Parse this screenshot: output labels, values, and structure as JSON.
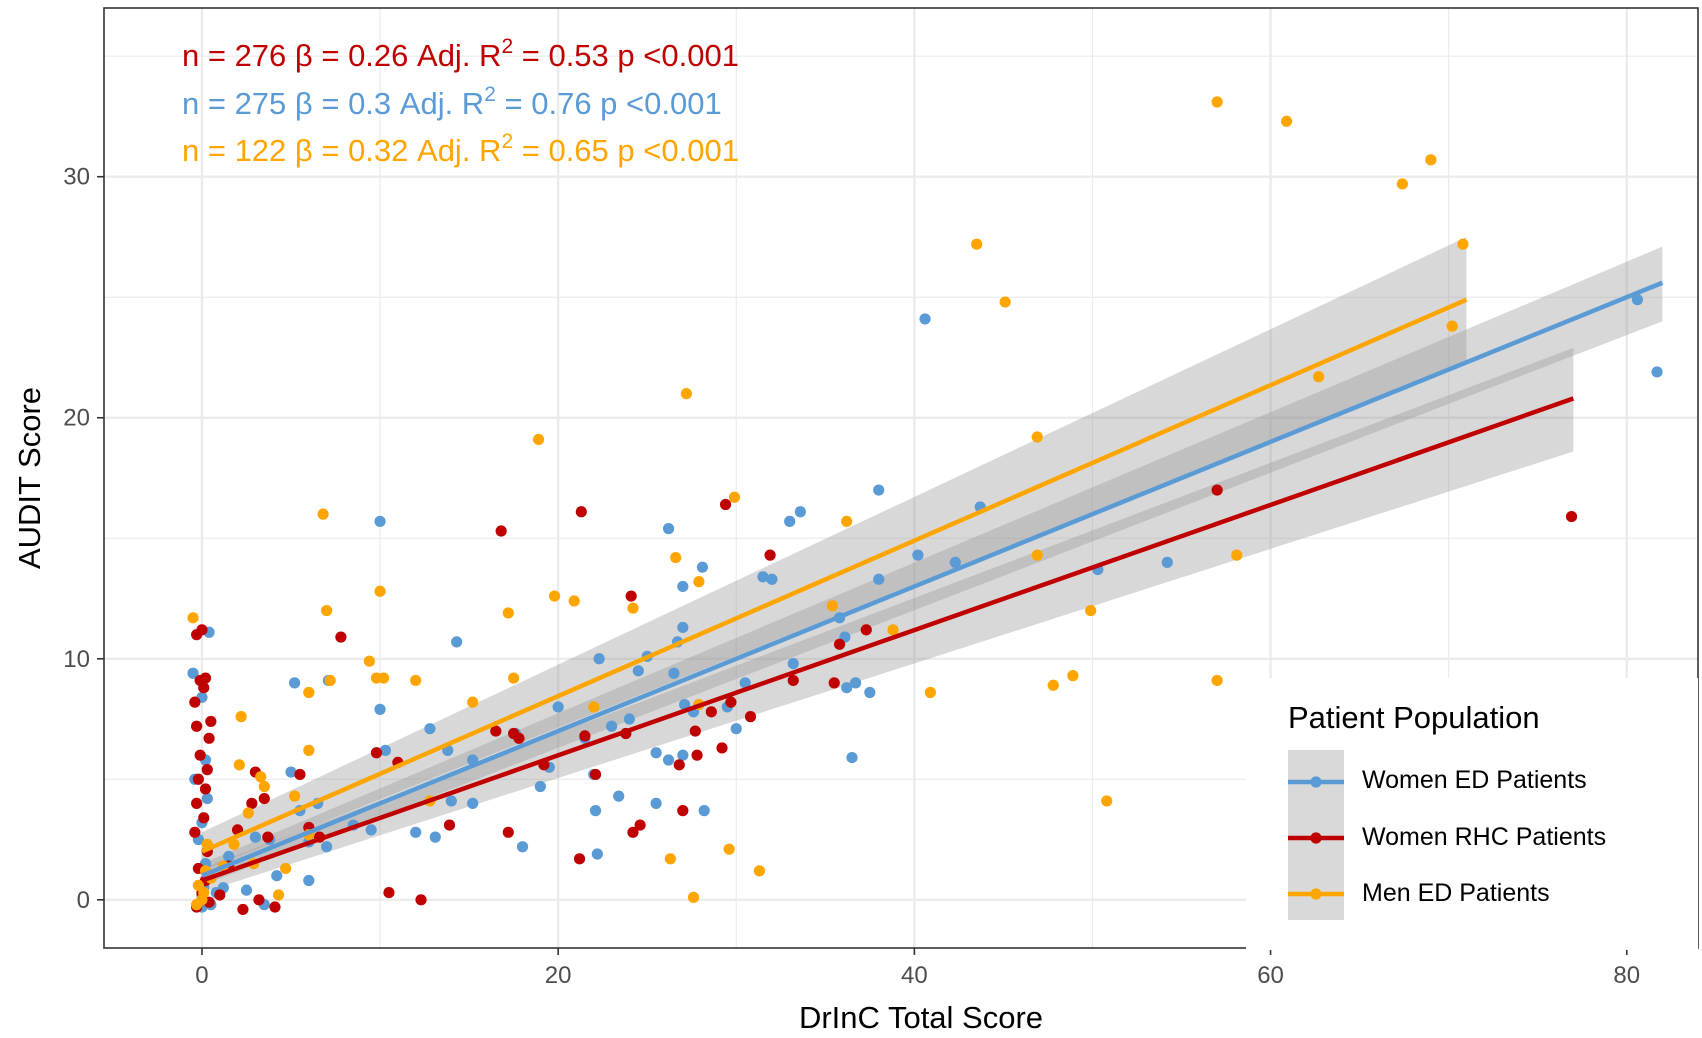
{
  "colors": {
    "women_ed": "#5b9bd5",
    "women_rhc": "#c00000",
    "men_ed": "#ffa500",
    "ribbon": "#999999",
    "grid": "#ebebeb"
  },
  "chart_data": {
    "type": "scatter",
    "xlabel": "DrInC Total Score",
    "ylabel": "AUDIT Score",
    "xlim": [
      -5.5,
      84
    ],
    "ylim": [
      -2,
      37
    ],
    "x_ticks": [
      0,
      20,
      40,
      60,
      80
    ],
    "y_ticks": [
      0,
      10,
      20,
      30
    ],
    "grid": true,
    "annotations": [
      {
        "text": "n = 276 β = 0.26 Adj. R² = 0.53 p <0.001",
        "parts": {
          "pre": "n = 276 β = 0.26 Adj. R",
          "sup": "2",
          "post": " = 0.53 p <0.001"
        },
        "color": "#c00000"
      },
      {
        "text": "n = 275 β = 0.3 Adj. R² = 0.76 p <0.001",
        "parts": {
          "pre": "n = 275 β = 0.3 Adj. R",
          "sup": "2",
          "post": " = 0.76 p <0.001"
        },
        "color": "#5b9bd5"
      },
      {
        "text": "n = 122 β = 0.32 Adj. R² = 0.65 p <0.001",
        "parts": {
          "pre": "n = 122 β = 0.32 Adj. R",
          "sup": "2",
          "post": " = 0.65 p <0.001"
        },
        "color": "#ffa500"
      }
    ],
    "legend": {
      "title": "Patient Population",
      "placement": "bottom-right",
      "entries": [
        "Women ED Patients",
        "Women RHC Patients",
        "Men ED Patients"
      ]
    },
    "series": [
      {
        "name": "Women ED Patients",
        "color": "#5b9bd5",
        "fit": {
          "x": [
            0,
            82
          ],
          "y": [
            1.0,
            25.6
          ],
          "lower": [
            0.6,
            24.0
          ],
          "upper": [
            1.5,
            27.1
          ]
        },
        "points": [
          [
            0,
            0
          ],
          [
            0,
            0.2
          ],
          [
            0,
            -0.3
          ],
          [
            0.1,
            0.5
          ],
          [
            0.2,
            1.5
          ],
          [
            -0.2,
            2.5
          ],
          [
            0,
            3.2
          ],
          [
            0.3,
            4.2
          ],
          [
            -0.4,
            5.0
          ],
          [
            0.2,
            5.8
          ],
          [
            0,
            8.4
          ],
          [
            -0.5,
            9.4
          ],
          [
            0.4,
            11.1
          ],
          [
            0.5,
            -0.2
          ],
          [
            0.8,
            0.3
          ],
          [
            1.2,
            0.5
          ],
          [
            1.5,
            1.8
          ],
          [
            2.5,
            0.4
          ],
          [
            3,
            2.6
          ],
          [
            3.5,
            -0.2
          ],
          [
            3.8,
            2.5
          ],
          [
            4.2,
            1.0
          ],
          [
            5,
            5.3
          ],
          [
            5.2,
            9.0
          ],
          [
            5.5,
            3.7
          ],
          [
            6,
            2.4
          ],
          [
            6,
            0.8
          ],
          [
            6.5,
            4.0
          ],
          [
            7,
            2.2
          ],
          [
            7.1,
            9.1
          ],
          [
            8.5,
            3.1
          ],
          [
            9.5,
            2.9
          ],
          [
            10,
            7.9
          ],
          [
            10,
            15.7
          ],
          [
            10.3,
            6.2
          ],
          [
            12,
            2.8
          ],
          [
            12.8,
            7.1
          ],
          [
            13.1,
            2.6
          ],
          [
            13.8,
            6.2
          ],
          [
            14,
            4.1
          ],
          [
            14.3,
            10.7
          ],
          [
            15.2,
            5.8
          ],
          [
            15.2,
            4.0
          ],
          [
            17.6,
            6.9
          ],
          [
            18,
            2.2
          ],
          [
            19,
            4.7
          ],
          [
            19.5,
            5.5
          ],
          [
            20,
            8.0
          ],
          [
            21.5,
            6.7
          ],
          [
            22,
            5.2
          ],
          [
            22.1,
            3.7
          ],
          [
            22.2,
            1.9
          ],
          [
            22.3,
            10.0
          ],
          [
            23,
            7.2
          ],
          [
            23.4,
            4.3
          ],
          [
            24,
            7.5
          ],
          [
            24.5,
            9.5
          ],
          [
            25,
            10.1
          ],
          [
            25.5,
            6.1
          ],
          [
            25.5,
            4.0
          ],
          [
            26.2,
            15.4
          ],
          [
            26.2,
            5.8
          ],
          [
            26.5,
            9.4
          ],
          [
            26.7,
            10.7
          ],
          [
            27,
            11.3
          ],
          [
            27,
            13.0
          ],
          [
            27,
            6.0
          ],
          [
            27.1,
            8.1
          ],
          [
            27.6,
            7.8
          ],
          [
            28.1,
            13.8
          ],
          [
            28.2,
            3.7
          ],
          [
            29.5,
            8.0
          ],
          [
            30,
            7.1
          ],
          [
            30.5,
            9.0
          ],
          [
            31.5,
            13.4
          ],
          [
            32,
            13.3
          ],
          [
            33,
            15.7
          ],
          [
            33.2,
            9.8
          ],
          [
            33.6,
            16.1
          ],
          [
            35.8,
            11.7
          ],
          [
            36.1,
            10.9
          ],
          [
            36.2,
            8.8
          ],
          [
            36.5,
            5.9
          ],
          [
            36.7,
            9.0
          ],
          [
            37.5,
            8.6
          ],
          [
            38,
            17.0
          ],
          [
            38,
            13.3
          ],
          [
            40.2,
            14.3
          ],
          [
            40.6,
            24.1
          ],
          [
            42.3,
            14.0
          ],
          [
            43.7,
            16.3
          ],
          [
            50.3,
            13.7
          ],
          [
            54.2,
            14.0
          ],
          [
            80.6,
            24.9
          ],
          [
            81.7,
            21.9
          ]
        ]
      },
      {
        "name": "Women RHC Patients",
        "color": "#c00000",
        "fit": {
          "x": [
            0,
            77
          ],
          "y": [
            0.8,
            20.8
          ],
          "lower": [
            0.3,
            18.6
          ],
          "upper": [
            1.3,
            22.9
          ]
        },
        "points": [
          [
            0,
            0
          ],
          [
            0,
            0.3
          ],
          [
            -0.3,
            -0.3
          ],
          [
            0.2,
            0.8
          ],
          [
            -0.2,
            1.3
          ],
          [
            0.3,
            2.0
          ],
          [
            -0.4,
            2.8
          ],
          [
            0.1,
            3.4
          ],
          [
            -0.3,
            4.0
          ],
          [
            0.2,
            4.6
          ],
          [
            -0.2,
            5.0
          ],
          [
            0.3,
            5.4
          ],
          [
            -0.1,
            6.0
          ],
          [
            0.4,
            6.7
          ],
          [
            -0.3,
            7.2
          ],
          [
            0.5,
            7.4
          ],
          [
            -0.4,
            8.2
          ],
          [
            0.1,
            8.8
          ],
          [
            -0.1,
            9.1
          ],
          [
            0.2,
            9.2
          ],
          [
            -0.3,
            11.0
          ],
          [
            0,
            11.2
          ],
          [
            0.4,
            -0.1
          ],
          [
            1,
            0.2
          ],
          [
            1.5,
            1.4
          ],
          [
            2,
            2.9
          ],
          [
            2.3,
            -0.4
          ],
          [
            2.8,
            4.0
          ],
          [
            3,
            5.3
          ],
          [
            3.2,
            0.0
          ],
          [
            3.5,
            4.2
          ],
          [
            3.7,
            2.6
          ],
          [
            4.1,
            -0.3
          ],
          [
            5.5,
            5.2
          ],
          [
            6,
            3.0
          ],
          [
            6.6,
            2.6
          ],
          [
            7.8,
            10.9
          ],
          [
            9.8,
            6.1
          ],
          [
            10.5,
            0.3
          ],
          [
            11,
            5.7
          ],
          [
            12.3,
            0.0
          ],
          [
            13.9,
            3.1
          ],
          [
            16.5,
            7.0
          ],
          [
            16.8,
            15.3
          ],
          [
            17.2,
            2.8
          ],
          [
            17.5,
            6.9
          ],
          [
            17.8,
            6.7
          ],
          [
            19.2,
            5.6
          ],
          [
            21.2,
            1.7
          ],
          [
            21.3,
            16.1
          ],
          [
            21.5,
            6.8
          ],
          [
            22.1,
            5.2
          ],
          [
            23.8,
            6.9
          ],
          [
            24.1,
            12.6
          ],
          [
            24.2,
            2.8
          ],
          [
            24.6,
            3.1
          ],
          [
            26.8,
            5.6
          ],
          [
            27,
            3.7
          ],
          [
            27.7,
            7.0
          ],
          [
            27.8,
            6.0
          ],
          [
            28.6,
            7.8
          ],
          [
            29.2,
            6.3
          ],
          [
            29.4,
            16.4
          ],
          [
            29.7,
            8.2
          ],
          [
            30.8,
            7.6
          ],
          [
            31.9,
            14.3
          ],
          [
            33.2,
            9.1
          ],
          [
            35.5,
            9.0
          ],
          [
            35.8,
            10.6
          ],
          [
            37.3,
            11.2
          ],
          [
            57,
            17.0
          ],
          [
            76.9,
            15.9
          ]
        ]
      },
      {
        "name": "Men ED Patients",
        "color": "#ffa500",
        "fit": {
          "x": [
            0,
            71
          ],
          "y": [
            2.0,
            24.9
          ],
          "lower": [
            1.2,
            22.3
          ],
          "upper": [
            2.8,
            27.5
          ]
        },
        "points": [
          [
            0,
            0
          ],
          [
            0.1,
            0.3
          ],
          [
            -0.2,
            0.6
          ],
          [
            0.2,
            1.2
          ],
          [
            -0.3,
            -0.2
          ],
          [
            0.3,
            2.3
          ],
          [
            -0.5,
            11.7
          ],
          [
            0.5,
            0.9
          ],
          [
            1.2,
            1.4
          ],
          [
            1.8,
            2.3
          ],
          [
            2.1,
            5.6
          ],
          [
            2.2,
            7.6
          ],
          [
            2.6,
            3.6
          ],
          [
            2.9,
            1.5
          ],
          [
            3.3,
            5.1
          ],
          [
            3.5,
            4.7
          ],
          [
            4.3,
            0.2
          ],
          [
            4.7,
            1.3
          ],
          [
            5.2,
            4.3
          ],
          [
            6,
            8.6
          ],
          [
            6,
            6.2
          ],
          [
            6,
            2.7
          ],
          [
            6.8,
            16.0
          ],
          [
            7,
            12.0
          ],
          [
            7.2,
            9.1
          ],
          [
            9.4,
            9.9
          ],
          [
            9.8,
            9.2
          ],
          [
            10,
            12.8
          ],
          [
            10.2,
            9.2
          ],
          [
            12,
            9.1
          ],
          [
            12.8,
            4.1
          ],
          [
            15.2,
            8.2
          ],
          [
            17.2,
            11.9
          ],
          [
            17.5,
            9.2
          ],
          [
            18.9,
            19.1
          ],
          [
            19.8,
            12.6
          ],
          [
            20.9,
            12.4
          ],
          [
            22,
            8.0
          ],
          [
            24.2,
            12.1
          ],
          [
            26.3,
            1.7
          ],
          [
            26.6,
            14.2
          ],
          [
            27.2,
            21.0
          ],
          [
            27.6,
            0.1
          ],
          [
            27.9,
            8.1
          ],
          [
            27.9,
            13.2
          ],
          [
            29.6,
            2.1
          ],
          [
            29.9,
            16.7
          ],
          [
            31.3,
            1.2
          ],
          [
            35.4,
            12.2
          ],
          [
            36.2,
            15.7
          ],
          [
            38.8,
            11.2
          ],
          [
            40.9,
            8.6
          ],
          [
            43.5,
            27.2
          ],
          [
            45.1,
            24.8
          ],
          [
            46.9,
            19.2
          ],
          [
            46.9,
            14.3
          ],
          [
            47.8,
            8.9
          ],
          [
            48.9,
            9.3
          ],
          [
            49.9,
            12.0
          ],
          [
            50.8,
            4.1
          ],
          [
            57,
            33.1
          ],
          [
            57,
            9.1
          ],
          [
            58.1,
            14.3
          ],
          [
            60.9,
            32.3
          ],
          [
            62.7,
            21.7
          ],
          [
            67.4,
            29.7
          ],
          [
            69,
            30.7
          ],
          [
            70.2,
            23.8
          ],
          [
            70.8,
            27.2
          ]
        ]
      }
    ]
  }
}
